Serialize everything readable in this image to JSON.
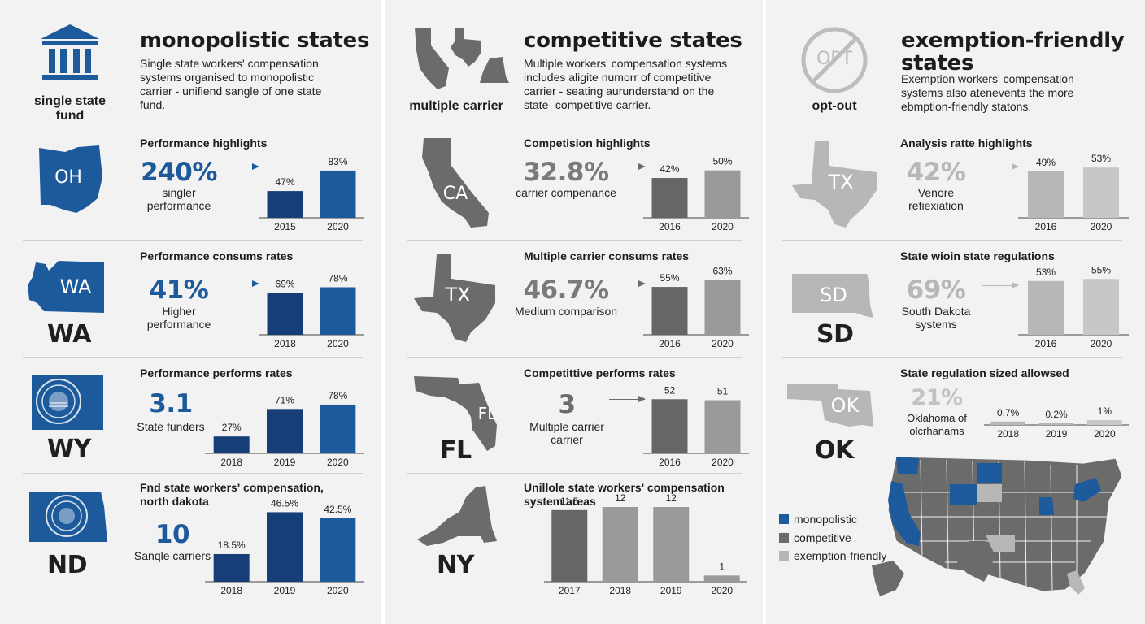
{
  "columns": [
    {
      "title": "monopolistic states",
      "description": "Single state workers' compensation systems organised to monopolistic carrier - unifiend sangle of one state fund.",
      "icon": "bank-building-icon",
      "icon_label": "single state fund",
      "panels": [
        {
          "title": "Performance highlights",
          "state": "OH",
          "big_value": "240%",
          "caption": "singler performance",
          "chart_data": {
            "type": "bar",
            "categories": [
              "2015",
              "2020"
            ],
            "values": [
              47,
              83
            ],
            "labels": [
              "47%",
              "83%"
            ],
            "ylim": [
              0,
              100
            ]
          }
        },
        {
          "title": "Performance consums rates",
          "state": "WA",
          "big_value": "41%",
          "caption": "Higher performance",
          "chart_data": {
            "type": "bar",
            "categories": [
              "2018",
              "2020"
            ],
            "values": [
              69,
              78
            ],
            "labels": [
              "69%",
              "78%"
            ],
            "ylim": [
              0,
              100
            ]
          }
        },
        {
          "title": "Performance performs rates",
          "state": "WY",
          "big_value": "3.1",
          "caption": "State funders",
          "chart_data": {
            "type": "bar",
            "categories": [
              "2018",
              "2019",
              "2020"
            ],
            "values": [
              27,
              71,
              78
            ],
            "labels": [
              "27%",
              "71%",
              "78%"
            ],
            "ylim": [
              0,
              100
            ]
          }
        },
        {
          "title": "Fnd state workers' compensation, north dakota",
          "state": "ND",
          "big_value": "10",
          "caption": "Sanqle carriers",
          "chart_data": {
            "type": "bar",
            "categories": [
              "2018",
              "2019",
              "2020"
            ],
            "values": [
              18.5,
              46.5,
              42.5
            ],
            "labels": [
              "18.5%",
              "46.5%",
              "42.5%"
            ],
            "ylim": [
              0,
              50
            ]
          }
        }
      ]
    },
    {
      "title": "competitive states",
      "description": "Multiple workers' compensation systems includes aligite numorr of competitive carrier - seating aurunderstand on the state- competitive carrier.",
      "icon": "state-shapes-icon",
      "icon_label": "multiple carrier",
      "panels": [
        {
          "title": "Competision highlights",
          "state": "CA",
          "big_value": "32.8%",
          "caption": "carrier compenance",
          "chart_data": {
            "type": "bar",
            "categories": [
              "2016",
              "2020"
            ],
            "values": [
              42,
              50
            ],
            "labels": [
              "42%",
              "50%"
            ],
            "ylim": [
              0,
              60
            ]
          }
        },
        {
          "title": "Multiple carrier consums rates",
          "state": "TX",
          "big_value": "46.7%",
          "caption": "Medium comparison",
          "chart_data": {
            "type": "bar",
            "categories": [
              "2016",
              "2020"
            ],
            "values": [
              55,
              63
            ],
            "labels": [
              "55%",
              "63%"
            ],
            "ylim": [
              0,
              70
            ]
          }
        },
        {
          "title": "Competittive performs rates",
          "state": "FL",
          "big_value": "3",
          "caption": "Multiple carrier carrier",
          "chart_data": {
            "type": "bar",
            "categories": [
              "2016",
              "2020"
            ],
            "values": [
              52,
              51
            ],
            "labels": [
              "52",
              "51"
            ],
            "ylim": [
              0,
              60
            ]
          }
        },
        {
          "title": "Unillole state workers' compensation system areas",
          "state": "NY",
          "big_value": "",
          "caption": "",
          "chart_data": {
            "type": "bar",
            "categories": [
              "2017",
              "2018",
              "2019",
              "2020"
            ],
            "values": [
              11.5,
              12,
              12,
              1
            ],
            "labels": [
              "11.5",
              "12",
              "12",
              "1"
            ],
            "ylim": [
              0,
              12
            ]
          }
        }
      ]
    },
    {
      "title": "exemption-friendly states",
      "description": "Exemption workers' compensation systems also atenevents the more ebmption-friendly statons.",
      "icon": "opt-out-prohibited-icon",
      "icon_text": "OPT",
      "icon_label": "opt-out",
      "panels": [
        {
          "title": "Analysis ratte highlights",
          "state": "TX",
          "big_value": "42%",
          "caption": "Venore refiexiation",
          "chart_data": {
            "type": "bar",
            "categories": [
              "2016",
              "2020"
            ],
            "values": [
              49,
              53
            ],
            "labels": [
              "49%",
              "53%"
            ],
            "ylim": [
              0,
              60
            ]
          }
        },
        {
          "title": "State wioin state regulations",
          "state": "SD",
          "big_value": "69%",
          "caption": "South Dakota systems",
          "chart_data": {
            "type": "bar",
            "categories": [
              "2016",
              "2020"
            ],
            "values": [
              53,
              55
            ],
            "labels": [
              "53%",
              "55%"
            ],
            "ylim": [
              0,
              60
            ]
          }
        },
        {
          "title": "State regulation sized allowsed",
          "state": "OK",
          "big_value": "21%",
          "caption": "Oklahoma of olcrhanams",
          "chart_data": {
            "type": "bar",
            "categories": [
              "2018",
              "2019",
              "2020"
            ],
            "values": [
              0.7,
              0.2,
              1
            ],
            "labels": [
              "0.7%",
              "0.2%",
              "1%"
            ],
            "ylim": [
              0,
              7
            ]
          }
        }
      ]
    }
  ],
  "legend": [
    {
      "label": "monopolistic",
      "color": "#1c5a9c"
    },
    {
      "label": "competitive",
      "color": "#6b6b6b"
    },
    {
      "label": "exemption-friendly",
      "color": "#b5b5b5"
    }
  ],
  "colors": {
    "monopolistic_dark": "#163f78",
    "monopolistic_light": "#1c5a9c",
    "competitive_dark": "#666666",
    "competitive_light": "#9a9a9a",
    "exempt_dark": "#b7b7b7",
    "exempt_light": "#c7c7c7"
  }
}
